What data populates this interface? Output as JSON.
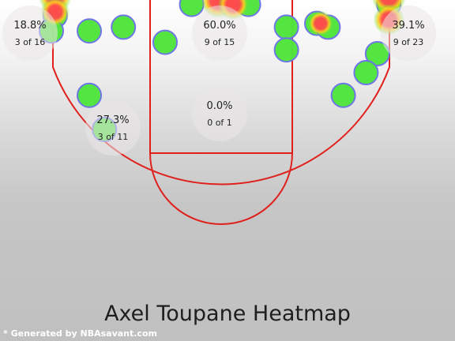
{
  "title": "Axel Toupane Heatmap",
  "footer": "* Generated by NBAsavant.com",
  "colors": {
    "court_line": "#e0201c",
    "miss_fill": "#4fe53c",
    "miss_stroke": "#6b73e6",
    "heat_hot": "#ff4a4a",
    "heat_warm": "#ffd21f",
    "zone_bubble": "#e9e5e5"
  },
  "chart_data": {
    "type": "scatter",
    "title": "Axel Toupane Heatmap",
    "zones": [
      {
        "name": "left-corner-three",
        "pct": "18.8%",
        "made_of": "3 of 16",
        "made": 3,
        "attempts": 16
      },
      {
        "name": "restricted-area",
        "pct": "60.0%",
        "made_of": "9 of 15",
        "made": 9,
        "attempts": 15
      },
      {
        "name": "right-corner-three",
        "pct": "39.1%",
        "made_of": "9 of 23",
        "made": 9,
        "attempts": 23
      },
      {
        "name": "left-mid-range",
        "pct": "27.3%",
        "made_of": "3 of 11",
        "made": 3,
        "attempts": 11
      },
      {
        "name": "paint-non-ra",
        "pct": "0.0%",
        "made_of": "0 of 1",
        "made": 0,
        "attempts": 1
      }
    ],
    "shot_units": "feet from hoop (x: left-right, y: away from baseline)",
    "missed_shots": [
      {
        "x": -22,
        "y": 2.5
      },
      {
        "x": -22.5,
        "y": 0.5
      },
      {
        "x": -17.5,
        "y": 0.5
      },
      {
        "x": -13,
        "y": 1
      },
      {
        "x": -7.5,
        "y": -1
      },
      {
        "x": -17.5,
        "y": -8
      },
      {
        "x": -15.5,
        "y": -12.5
      },
      {
        "x": 8.5,
        "y": 1
      },
      {
        "x": 8.5,
        "y": -2
      },
      {
        "x": 12.5,
        "y": 1.5
      },
      {
        "x": 14,
        "y": 1
      },
      {
        "x": 20.5,
        "y": -2.5
      },
      {
        "x": 16,
        "y": -8
      },
      {
        "x": 19,
        "y": -5
      },
      {
        "x": -4,
        "y": 4
      },
      {
        "x": 3.5,
        "y": 4
      },
      {
        "x": 22,
        "y": 4
      }
    ],
    "heat_spots": [
      {
        "x": -22,
        "y": 5,
        "intensity": 0.9
      },
      {
        "x": -22,
        "y": 3,
        "intensity": 0.7
      },
      {
        "x": -0.5,
        "y": 4.5,
        "intensity": 1.0
      },
      {
        "x": 1.5,
        "y": 4,
        "intensity": 0.8
      },
      {
        "x": 22,
        "y": 5,
        "intensity": 1.0
      },
      {
        "x": 22,
        "y": 2,
        "intensity": 0.8
      },
      {
        "x": 13,
        "y": 1.5,
        "intensity": 0.5
      }
    ]
  }
}
